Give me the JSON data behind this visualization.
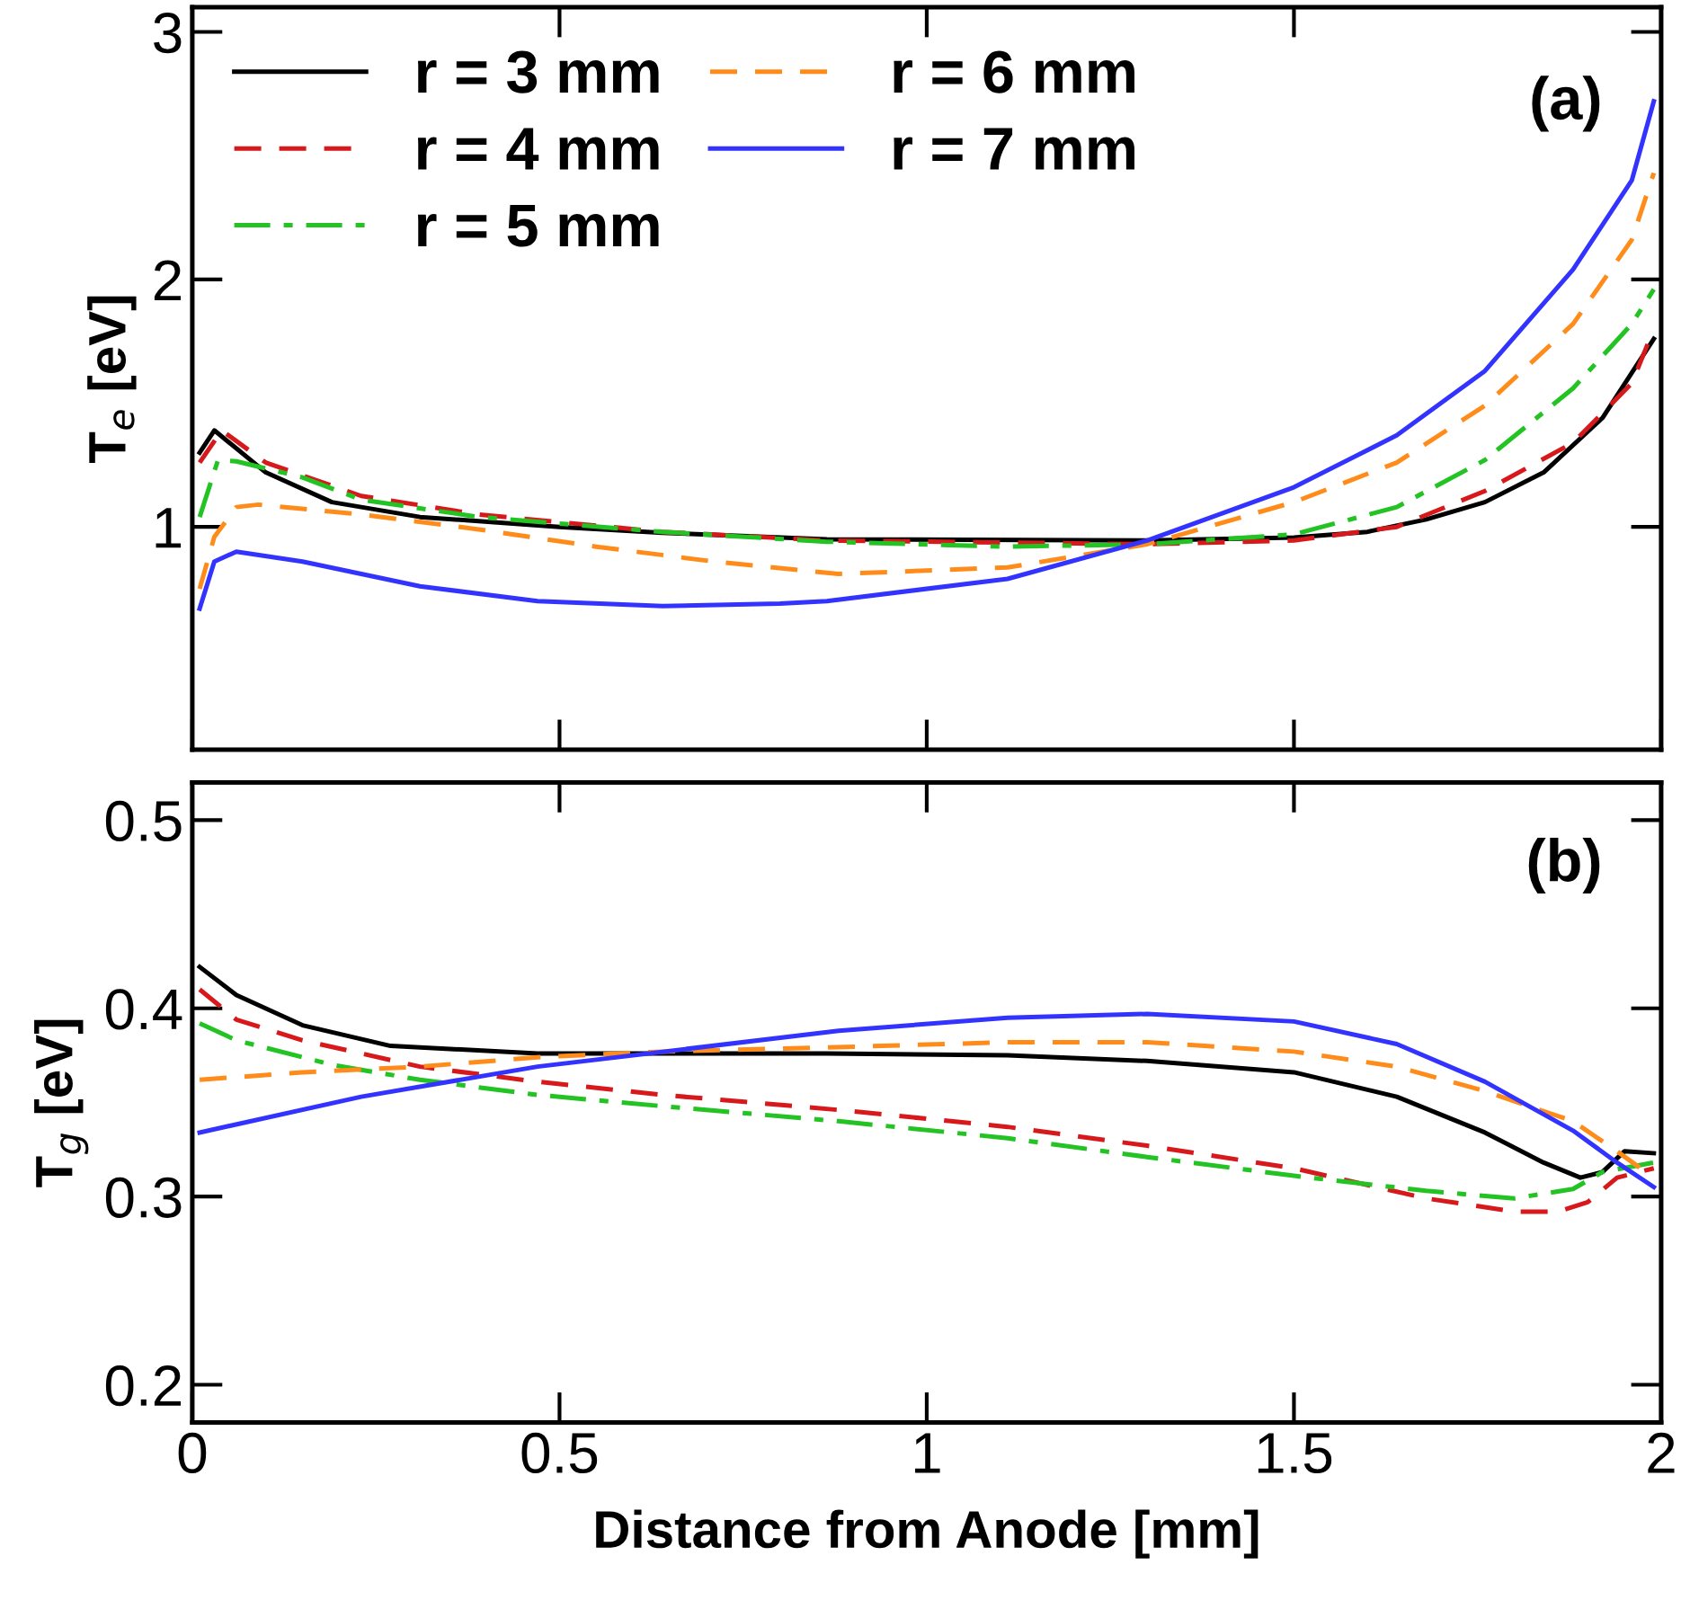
{
  "chart_data": [
    {
      "type": "line",
      "ylabel": "T$_{e}$ [eV]",
      "annotations": [
        "(a)"
      ],
      "legend": "top left",
      "tick_labels": "y",
      "grid": false,
      "xlim": [
        0,
        2
      ],
      "ylim": [
        0.1,
        3.1
      ],
      "xticks": [
        0,
        0.5,
        1,
        1.5,
        2
      ],
      "yticks": [
        1,
        2,
        3
      ],
      "series": [
        {
          "name": "r = 3 mm",
          "color": "#000000",
          "line_style": "solid",
          "x": [
            0.01,
            0.03,
            0.1,
            0.19,
            0.31,
            0.5,
            0.64,
            0.864,
            1.3,
            1.5,
            1.6,
            1.68,
            1.76,
            1.84,
            1.92,
            1.99
          ],
          "values": [
            1.3,
            1.39,
            1.22,
            1.1,
            1.04,
            1.0,
            0.976,
            0.95,
            0.945,
            0.957,
            0.98,
            1.03,
            1.1,
            1.22,
            1.44,
            1.76
          ]
        },
        {
          "name": "r = 4 mm",
          "color": "#d7191c",
          "line_style": "dashed",
          "x": [
            0.01,
            0.04,
            0.1,
            0.23,
            0.39,
            0.64,
            0.864,
            1.3,
            1.5,
            1.64,
            1.76,
            1.88,
            1.96,
            1.99
          ],
          "values": [
            1.26,
            1.39,
            1.26,
            1.125,
            1.05,
            0.98,
            0.945,
            0.93,
            0.945,
            1.0,
            1.145,
            1.34,
            1.58,
            1.8
          ]
        },
        {
          "name": "r = 5 mm",
          "color": "#22c322",
          "line_style": "dashdot",
          "x": [
            0.01,
            0.035,
            0.06,
            0.15,
            0.23,
            0.39,
            0.64,
            0.864,
            1.11,
            1.3,
            1.5,
            1.64,
            1.76,
            1.88,
            1.96,
            1.99
          ],
          "values": [
            1.04,
            1.27,
            1.265,
            1.2,
            1.11,
            1.04,
            0.98,
            0.94,
            0.92,
            0.93,
            0.97,
            1.08,
            1.27,
            1.56,
            1.82,
            1.96
          ]
        },
        {
          "name": "r = 6 mm",
          "color": "#ff8c1a",
          "line_style": "dashed",
          "x": [
            0.01,
            0.03,
            0.06,
            0.09,
            0.23,
            0.39,
            0.55,
            0.71,
            0.88,
            1.11,
            1.3,
            1.5,
            1.64,
            1.76,
            1.88,
            1.96,
            1.99
          ],
          "values": [
            0.75,
            0.96,
            1.08,
            1.09,
            1.05,
            0.99,
            0.92,
            0.86,
            0.81,
            0.836,
            0.93,
            1.1,
            1.26,
            1.49,
            1.82,
            2.16,
            2.43
          ]
        },
        {
          "name": "r = 7 mm",
          "color": "#3333ff",
          "line_style": "solid",
          "x": [
            0.01,
            0.03,
            0.06,
            0.15,
            0.31,
            0.47,
            0.64,
            0.8,
            0.864,
            1.11,
            1.3,
            1.5,
            1.64,
            1.76,
            1.88,
            1.96,
            1.99
          ],
          "values": [
            0.67,
            0.86,
            0.9,
            0.86,
            0.76,
            0.7,
            0.68,
            0.69,
            0.7,
            0.79,
            0.945,
            1.16,
            1.37,
            1.63,
            2.04,
            2.4,
            2.72
          ]
        }
      ]
    },
    {
      "type": "line",
      "ylabel": "T$_{g}$ [eV]",
      "xlabel": "Distance from Anode [mm]",
      "annotations": [
        "(b)"
      ],
      "grid": false,
      "xlim": [
        0,
        2
      ],
      "ylim": [
        0.18,
        0.52
      ],
      "xticks": [
        0,
        0.5,
        1,
        1.5,
        2
      ],
      "yticks": [
        0.2,
        0.3,
        0.4,
        0.5
      ],
      "series": [
        {
          "color": "#000000",
          "line_style": "solid",
          "x": [
            0.01,
            0.06,
            0.15,
            0.27,
            0.47,
            0.864,
            1.11,
            1.3,
            1.5,
            1.64,
            1.76,
            1.84,
            1.89,
            1.92,
            1.95,
            1.99
          ],
          "values": [
            0.422,
            0.407,
            0.391,
            0.38,
            0.376,
            0.376,
            0.375,
            0.372,
            0.366,
            0.353,
            0.334,
            0.318,
            0.31,
            0.313,
            0.324,
            0.323
          ]
        },
        {
          "color": "#d7191c",
          "line_style": "dashed",
          "x": [
            0.01,
            0.06,
            0.15,
            0.31,
            0.47,
            0.64,
            0.88,
            1.11,
            1.3,
            1.5,
            1.68,
            1.8,
            1.86,
            1.9,
            1.94,
            1.99
          ],
          "values": [
            0.41,
            0.394,
            0.383,
            0.369,
            0.361,
            0.354,
            0.346,
            0.337,
            0.327,
            0.315,
            0.299,
            0.292,
            0.292,
            0.297,
            0.31,
            0.315
          ]
        },
        {
          "color": "#22c322",
          "line_style": "dashdot",
          "x": [
            0.01,
            0.06,
            0.19,
            0.31,
            0.47,
            0.64,
            0.88,
            1.11,
            1.3,
            1.5,
            1.68,
            1.8,
            1.88,
            1.92,
            1.99
          ],
          "values": [
            0.392,
            0.383,
            0.37,
            0.362,
            0.354,
            0.348,
            0.34,
            0.331,
            0.321,
            0.311,
            0.303,
            0.299,
            0.304,
            0.313,
            0.318
          ]
        },
        {
          "color": "#ff8c1a",
          "line_style": "dashed",
          "x": [
            0.01,
            0.15,
            0.31,
            0.47,
            0.64,
            0.85,
            1.11,
            1.3,
            1.5,
            1.64,
            1.76,
            1.88,
            1.94,
            1.99
          ],
          "values": [
            0.362,
            0.366,
            0.369,
            0.374,
            0.377,
            0.379,
            0.382,
            0.382,
            0.377,
            0.369,
            0.356,
            0.34,
            0.324,
            0.31
          ]
        },
        {
          "color": "#3333ff",
          "line_style": "solid",
          "x": [
            0.01,
            0.23,
            0.47,
            0.88,
            1.11,
            1.3,
            1.5,
            1.64,
            1.76,
            1.88,
            1.94,
            1.99
          ],
          "values": [
            0.334,
            0.353,
            0.369,
            0.388,
            0.395,
            0.397,
            0.393,
            0.381,
            0.361,
            0.335,
            0.318,
            0.305
          ]
        }
      ]
    }
  ]
}
